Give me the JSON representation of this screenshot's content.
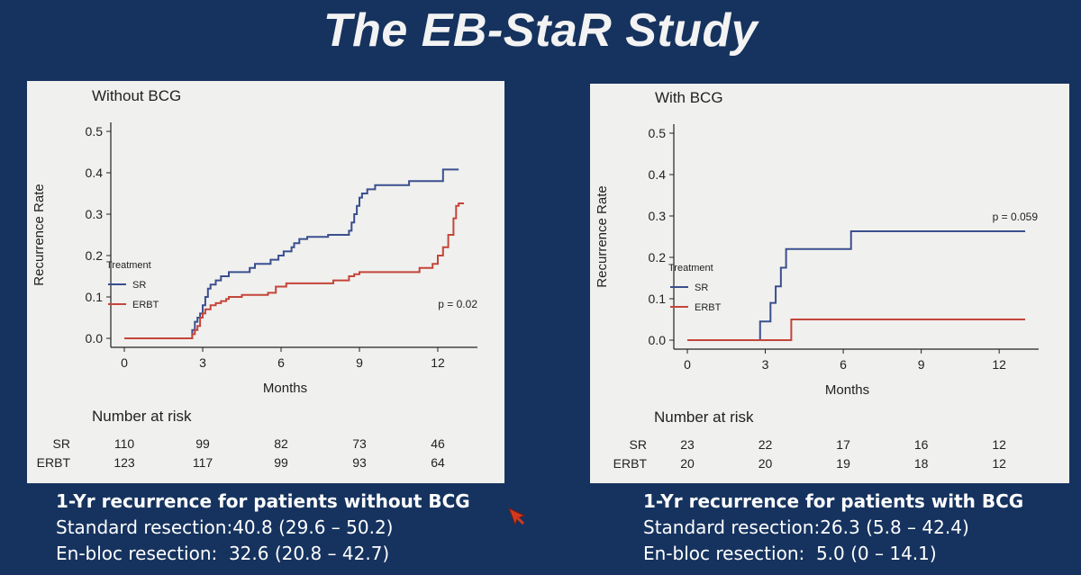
{
  "slide": {
    "title": "The EB-StaR Study"
  },
  "chart_data": [
    {
      "type": "line",
      "step": true,
      "title": "Without BCG",
      "xlabel": "Months",
      "ylabel": "Recurrence Rate",
      "xticks": [
        0,
        3,
        6,
        9,
        12
      ],
      "yticks": [
        "0.0",
        "0.1",
        "0.2",
        "0.3",
        "0.4",
        "0.5"
      ],
      "xlim": [
        0,
        13
      ],
      "ylim": [
        0,
        0.5
      ],
      "grid": false,
      "legend": {
        "title": "Treatment",
        "position": "left"
      },
      "annotation": "p = 0.02",
      "series": [
        {
          "name": "SR",
          "color": "#3a4f8f",
          "x": [
            0,
            2.6,
            2.7,
            2.8,
            2.9,
            3.0,
            3.1,
            3.2,
            3.3,
            3.5,
            3.7,
            4.0,
            4.8,
            5.0,
            5.3,
            5.6,
            5.9,
            6.1,
            6.4,
            6.5,
            6.7,
            7.0,
            7.8,
            8.6,
            8.7,
            8.8,
            8.9,
            9.0,
            9.1,
            9.3,
            9.6,
            10.8,
            10.9,
            12.2,
            12.8
          ],
          "y": [
            0,
            0.02,
            0.04,
            0.05,
            0.06,
            0.08,
            0.1,
            0.12,
            0.13,
            0.14,
            0.15,
            0.16,
            0.17,
            0.18,
            0.18,
            0.19,
            0.2,
            0.21,
            0.22,
            0.23,
            0.24,
            0.245,
            0.25,
            0.26,
            0.28,
            0.3,
            0.32,
            0.34,
            0.35,
            0.36,
            0.37,
            0.37,
            0.38,
            0.408,
            0.408
          ]
        },
        {
          "name": "ERBT",
          "color": "#c4453a",
          "x": [
            0,
            2.6,
            2.7,
            2.8,
            2.9,
            3.0,
            3.1,
            3.3,
            3.5,
            3.7,
            3.9,
            4.0,
            4.5,
            5.5,
            5.8,
            6.2,
            8.0,
            8.6,
            8.8,
            9.0,
            11.3,
            11.8,
            12.0,
            12.2,
            12.4,
            12.6,
            12.7,
            12.8,
            13.0
          ],
          "y": [
            0,
            0.01,
            0.02,
            0.03,
            0.05,
            0.06,
            0.07,
            0.08,
            0.085,
            0.09,
            0.095,
            0.1,
            0.105,
            0.11,
            0.125,
            0.133,
            0.14,
            0.15,
            0.155,
            0.16,
            0.17,
            0.18,
            0.2,
            0.22,
            0.25,
            0.29,
            0.32,
            0.326,
            0.326
          ]
        }
      ],
      "risk_table": {
        "title": "Number at risk",
        "rows": [
          {
            "label": "SR",
            "values": [
              "110",
              "99",
              "82",
              "73",
              "46"
            ]
          },
          {
            "label": "ERBT",
            "values": [
              "123",
              "117",
              "99",
              "93",
              "64"
            ]
          }
        ]
      }
    },
    {
      "type": "line",
      "step": true,
      "title": "With BCG",
      "xlabel": "Months",
      "ylabel": "Recurrence Rate",
      "xticks": [
        0,
        3,
        6,
        9,
        12
      ],
      "yticks": [
        "0.0",
        "0.1",
        "0.2",
        "0.3",
        "0.4",
        "0.5"
      ],
      "xlim": [
        0,
        13
      ],
      "ylim": [
        0,
        0.5
      ],
      "grid": false,
      "legend": {
        "title": "Treatment",
        "position": "left"
      },
      "annotation": "p = 0.059",
      "series": [
        {
          "name": "SR",
          "color": "#3a4f8f",
          "x": [
            0,
            2.8,
            3.2,
            3.4,
            3.6,
            3.8,
            6.3,
            13.0
          ],
          "y": [
            0,
            0.045,
            0.09,
            0.13,
            0.175,
            0.22,
            0.263,
            0.263
          ]
        },
        {
          "name": "ERBT",
          "color": "#c4453a",
          "x": [
            0,
            4.0,
            13.0
          ],
          "y": [
            0,
            0.05,
            0.05
          ]
        }
      ],
      "risk_table": {
        "title": "Number at risk",
        "rows": [
          {
            "label": "SR",
            "values": [
              "23",
              "22",
              "17",
              "16",
              "12"
            ]
          },
          {
            "label": "ERBT",
            "values": [
              "20",
              "20",
              "19",
              "18",
              "12"
            ]
          }
        ]
      }
    }
  ],
  "summaries": [
    {
      "heading": "1-Yr recurrence for patients without BCG",
      "lines": [
        {
          "label": "Standard resection:",
          "value": "40.8 (29.6 – 50.2)"
        },
        {
          "label": "En-bloc resection:  ",
          "value": "32.6 (20.8 – 42.7)"
        }
      ]
    },
    {
      "heading": "1-Yr recurrence for patients with BCG",
      "lines": [
        {
          "label": "Standard resection:",
          "value": "26.3 (5.8 – 42.4)"
        },
        {
          "label": "En-bloc resection:  ",
          "value": "5.0 (0 – 14.1)"
        }
      ]
    }
  ],
  "colors": {
    "background": "#16335f",
    "panel": "#f0f0ee",
    "pointer": "#d23a1f"
  },
  "icons": {
    "pointer": "cursor-arrow-icon"
  }
}
